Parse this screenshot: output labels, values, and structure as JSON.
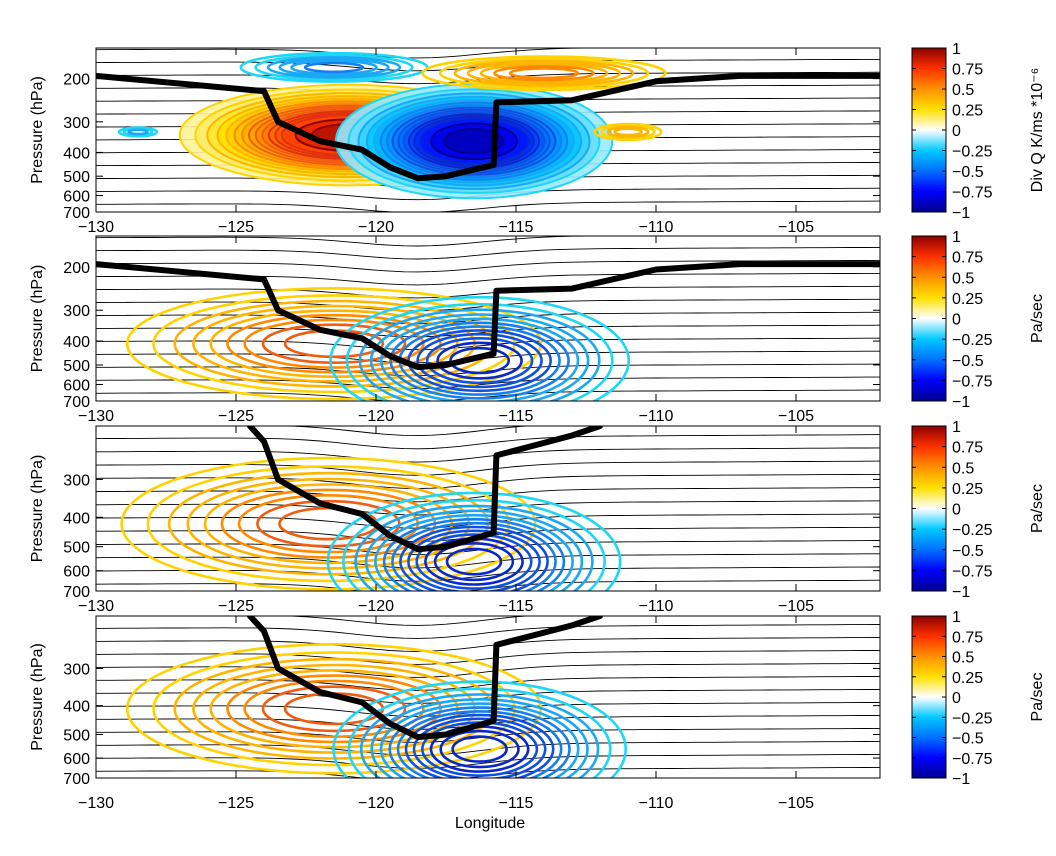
{
  "figure": {
    "xlabel": "Longitude",
    "x_ticks": [
      "−130",
      "−125",
      "−120",
      "−115",
      "−110",
      "−105"
    ],
    "x_tick_values": [
      -130,
      -125,
      -120,
      -115,
      -110,
      -105
    ]
  },
  "colorscale": [
    "#00008f",
    "#0000ff",
    "#0070ff",
    "#00c8ff",
    "#ffffff",
    "#ffe000",
    "#ff9000",
    "#ff3000",
    "#8b0000"
  ],
  "chart_data": [
    {
      "type": "contour",
      "panel": 1,
      "ylabel": "Pressure (hPa)",
      "y_ticks": [
        "200",
        "300",
        "400",
        "500",
        "600",
        "700"
      ],
      "y_tick_values": [
        200,
        300,
        400,
        500,
        600,
        700
      ],
      "xlim": [
        -130,
        -102
      ],
      "ylim": [
        150,
        700
      ],
      "y_scale": "log",
      "colorbar": {
        "label": "Div Q K/ms *10⁻⁶",
        "ticks": [
          "1",
          "0.75",
          "0.5",
          "0.25",
          "0",
          "−0.25",
          "−0.5",
          "−0.75",
          "−1"
        ],
        "tick_values": [
          1,
          0.75,
          0.5,
          0.25,
          0,
          -0.25,
          -0.5,
          -0.75,
          -1
        ]
      },
      "features": [
        {
          "sign": "positive",
          "center_lon": -121,
          "center_p": 340,
          "peak": 1.0,
          "width_lon": 2.8,
          "width_logp": 0.22,
          "filled": true
        },
        {
          "sign": "negative",
          "center_lon": -116.5,
          "center_p": 360,
          "peak": -1.0,
          "width_lon": 2.3,
          "width_logp": 0.25,
          "filled": true
        },
        {
          "sign": "negative",
          "center_lon": -121.5,
          "center_p": 180,
          "peak": -0.4,
          "width_lon": 2.0,
          "width_logp": 0.08
        },
        {
          "sign": "positive",
          "center_lon": -114,
          "center_p": 190,
          "peak": 0.45,
          "width_lon": 2.5,
          "width_logp": 0.09
        },
        {
          "sign": "negative",
          "center_lon": -128.5,
          "center_p": 330,
          "peak": -0.25,
          "width_lon": 0.5,
          "width_logp": 0.03
        },
        {
          "sign": "positive",
          "center_lon": -111,
          "center_p": 330,
          "peak": 0.3,
          "width_lon": 0.8,
          "width_logp": 0.05
        }
      ],
      "tropopause": [
        [
          -130,
          195
        ],
        [
          -124,
          225
        ],
        [
          -123.5,
          300
        ],
        [
          -122,
          360
        ],
        [
          -120.5,
          390
        ],
        [
          -119.5,
          460
        ],
        [
          -118.5,
          510
        ],
        [
          -117.5,
          500
        ],
        [
          -116.5,
          470
        ],
        [
          -115.8,
          450
        ],
        [
          -115.7,
          250
        ],
        [
          -113,
          245
        ],
        [
          -110,
          205
        ],
        [
          -107,
          195
        ],
        [
          -102,
          195
        ]
      ]
    },
    {
      "type": "contour",
      "panel": 2,
      "ylabel": "Pressure (hPa)",
      "y_ticks": [
        "200",
        "300",
        "400",
        "500",
        "600",
        "700"
      ],
      "y_tick_values": [
        200,
        300,
        400,
        500,
        600,
        700
      ],
      "xlim": [
        -130,
        -102
      ],
      "ylim": [
        150,
        700
      ],
      "y_scale": "log",
      "colorbar": {
        "label": "Pa/sec",
        "ticks": [
          "1",
          "0.75",
          "0.5",
          "0.25",
          "0",
          "−0.25",
          "−0.5",
          "−0.75",
          "−1"
        ],
        "tick_values": [
          1,
          0.75,
          0.5,
          0.25,
          0,
          -0.25,
          -0.5,
          -0.75,
          -1
        ]
      },
      "features": [
        {
          "sign": "positive",
          "center_lon": -121.5,
          "center_p": 410,
          "peak": 0.55,
          "width_lon": 4.0,
          "width_logp": 0.28
        },
        {
          "sign": "negative",
          "center_lon": -116.3,
          "center_p": 480,
          "peak": -0.7,
          "width_lon": 2.7,
          "width_logp": 0.3
        }
      ],
      "tropopause": [
        [
          -130,
          195
        ],
        [
          -124,
          225
        ],
        [
          -123.5,
          300
        ],
        [
          -122,
          360
        ],
        [
          -120.5,
          390
        ],
        [
          -119.5,
          460
        ],
        [
          -118.5,
          510
        ],
        [
          -117.5,
          500
        ],
        [
          -116.5,
          470
        ],
        [
          -115.8,
          450
        ],
        [
          -115.7,
          250
        ],
        [
          -113,
          245
        ],
        [
          -110,
          205
        ],
        [
          -107,
          195
        ],
        [
          -102,
          195
        ]
      ]
    },
    {
      "type": "contour",
      "panel": 3,
      "ylabel": "Pressure (hPa)",
      "y_ticks": [
        "300",
        "400",
        "500",
        "600",
        "700"
      ],
      "y_tick_values": [
        300,
        400,
        500,
        600,
        700
      ],
      "xlim": [
        -130,
        -102
      ],
      "ylim": [
        200,
        700
      ],
      "y_scale": "log",
      "colorbar": {
        "label": "Pa/sec",
        "ticks": [
          "1",
          "0.75",
          "0.5",
          "0.25",
          "0",
          "−0.25",
          "−0.5",
          "−0.75",
          "−1"
        ],
        "tick_values": [
          1,
          0.75,
          0.5,
          0.25,
          0,
          -0.25,
          -0.5,
          -0.75,
          -1
        ]
      },
      "features": [
        {
          "sign": "positive",
          "center_lon": -121.7,
          "center_p": 420,
          "peak": 0.55,
          "width_lon": 4.0,
          "width_logp": 0.27
        },
        {
          "sign": "negative",
          "center_lon": -116.5,
          "center_p": 560,
          "peak": -0.75,
          "width_lon": 2.6,
          "width_logp": 0.26
        }
      ],
      "tropopause": [
        [
          -124.5,
          200
        ],
        [
          -124,
          225
        ],
        [
          -123.5,
          300
        ],
        [
          -122,
          360
        ],
        [
          -120.5,
          390
        ],
        [
          -119.5,
          460
        ],
        [
          -118.5,
          510
        ],
        [
          -117.5,
          500
        ],
        [
          -116.5,
          470
        ],
        [
          -115.8,
          450
        ],
        [
          -115.7,
          250
        ],
        [
          -113,
          215
        ],
        [
          -112,
          200
        ]
      ]
    },
    {
      "type": "contour",
      "panel": 4,
      "ylabel": "Pressure (hPa)",
      "y_ticks": [
        "300",
        "400",
        "500",
        "600",
        "700"
      ],
      "y_tick_values": [
        300,
        400,
        500,
        600,
        700
      ],
      "xlim": [
        -130,
        -102
      ],
      "ylim": [
        200,
        700
      ],
      "y_scale": "log",
      "colorbar": {
        "label": "Pa/sec",
        "ticks": [
          "1",
          "0.75",
          "0.5",
          "0.25",
          "0",
          "−0.25",
          "−0.5",
          "−0.75",
          "−1"
        ],
        "tick_values": [
          1,
          0.75,
          0.5,
          0.25,
          0,
          -0.25,
          -0.5,
          -0.75,
          -1
        ]
      },
      "features": [
        {
          "sign": "positive",
          "center_lon": -121.5,
          "center_p": 410,
          "peak": 0.55,
          "width_lon": 4.0,
          "width_logp": 0.27
        },
        {
          "sign": "negative",
          "center_lon": -116.3,
          "center_p": 560,
          "peak": -0.75,
          "width_lon": 2.6,
          "width_logp": 0.26
        }
      ],
      "tropopause": [
        [
          -124.5,
          200
        ],
        [
          -124,
          225
        ],
        [
          -123.5,
          300
        ],
        [
          -122,
          360
        ],
        [
          -120.5,
          390
        ],
        [
          -119.5,
          460
        ],
        [
          -118.5,
          510
        ],
        [
          -117.5,
          500
        ],
        [
          -116.5,
          470
        ],
        [
          -115.8,
          450
        ],
        [
          -115.7,
          250
        ],
        [
          -113,
          215
        ],
        [
          -112,
          200
        ]
      ]
    }
  ]
}
